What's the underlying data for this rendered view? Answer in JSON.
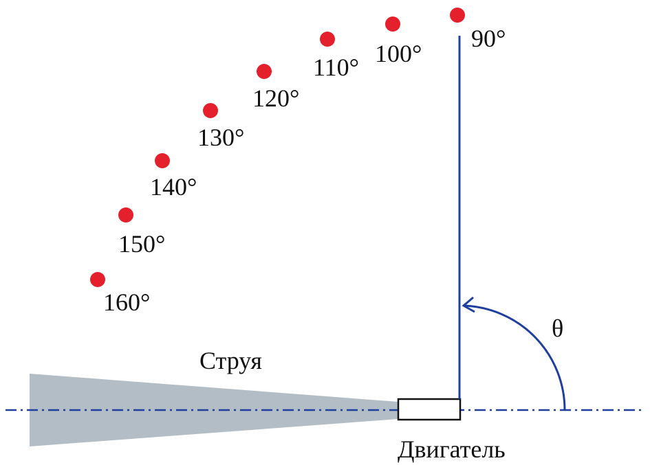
{
  "labels": {
    "jet": "Струя",
    "engine": "Двигатель",
    "angle_symbol": "θ"
  },
  "points": [
    {
      "angle": 90,
      "label": "90°"
    },
    {
      "angle": 100,
      "label": "100°"
    },
    {
      "angle": 110,
      "label": "110°"
    },
    {
      "angle": 120,
      "label": "120°"
    },
    {
      "angle": 130,
      "label": "130°"
    },
    {
      "angle": 140,
      "label": "140°"
    },
    {
      "angle": 150,
      "label": "150°"
    },
    {
      "angle": 160,
      "label": "160°"
    }
  ],
  "colors": {
    "point": "#e3202b",
    "axis": "#1f3f9e",
    "jet": "#b3bdc5",
    "text": "#111111"
  }
}
